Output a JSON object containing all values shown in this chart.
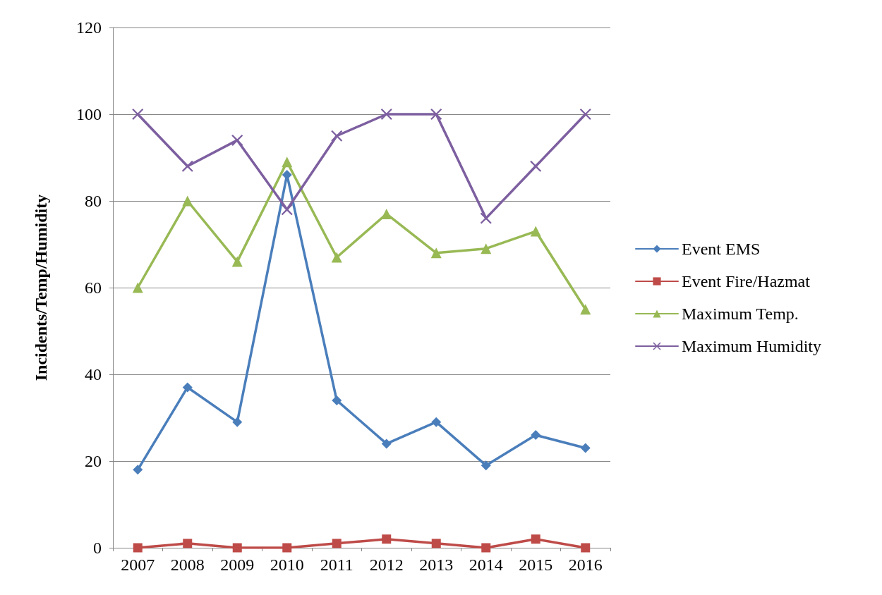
{
  "chart_data": {
    "type": "line",
    "ylabel": "Incidents/Temp/Humidity",
    "categories": [
      "2007",
      "2008",
      "2009",
      "2010",
      "2011",
      "2012",
      "2013",
      "2014",
      "2015",
      "2016"
    ],
    "series": [
      {
        "name": "Event EMS",
        "color": "#4a7ebb",
        "marker": "diamond",
        "values": [
          18,
          37,
          29,
          86,
          34,
          24,
          29,
          19,
          26,
          23
        ]
      },
      {
        "name": "Event Fire/Hazmat",
        "color": "#be4b48",
        "marker": "square",
        "values": [
          0,
          1,
          0,
          0,
          1,
          2,
          1,
          0,
          2,
          0
        ]
      },
      {
        "name": "Maximum Temp.",
        "color": "#98b954",
        "marker": "triangle",
        "values": [
          60,
          80,
          66,
          89,
          67,
          77,
          68,
          69,
          73,
          55
        ]
      },
      {
        "name": "Maximum Humidity",
        "color": "#7d5fa0",
        "marker": "cross",
        "values": [
          100,
          88,
          94,
          78,
          95,
          100,
          100,
          76,
          88,
          100
        ]
      }
    ],
    "ylim": [
      0,
      120
    ],
    "yticks": [
      0,
      20,
      40,
      60,
      80,
      100,
      120
    ],
    "grid": "y",
    "legend": "right",
    "line_style": "solid"
  }
}
